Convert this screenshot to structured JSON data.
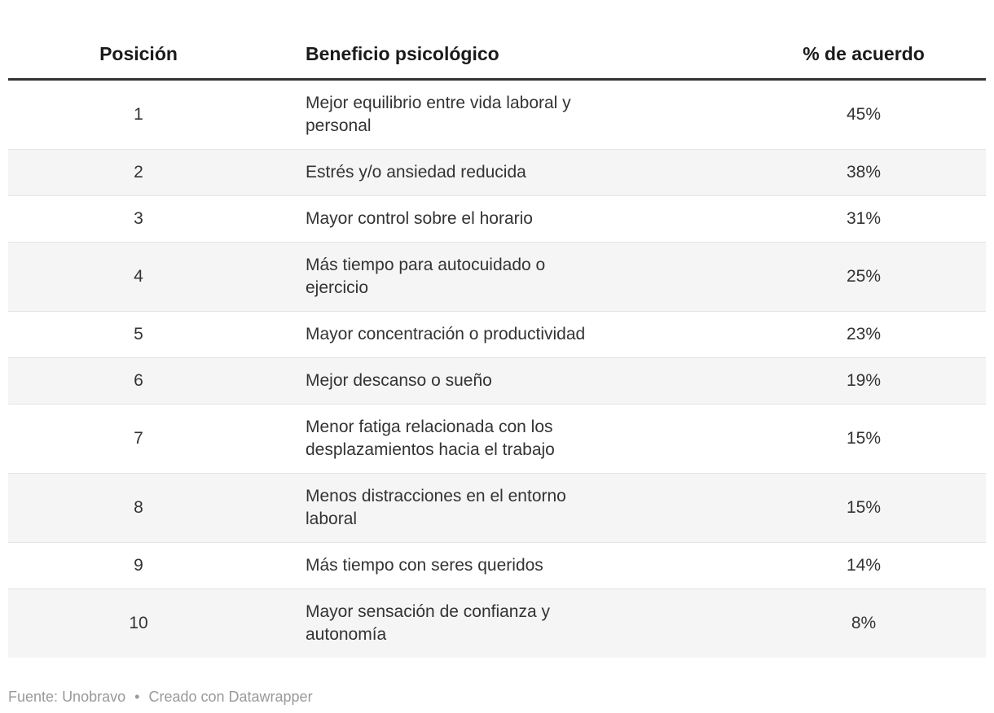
{
  "table": {
    "columns": [
      {
        "key": "posicion",
        "label": "Posición",
        "align": "center"
      },
      {
        "key": "beneficio",
        "label": "Beneficio psicológico",
        "align": "left"
      },
      {
        "key": "porcentaje",
        "label": "% de acuerdo",
        "align": "center"
      }
    ],
    "rows": [
      {
        "posicion": "1",
        "beneficio": "Mejor equilibrio entre vida laboral y\npersonal",
        "porcentaje": "45%"
      },
      {
        "posicion": "2",
        "beneficio": "Estrés y/o ansiedad reducida",
        "porcentaje": "38%"
      },
      {
        "posicion": "3",
        "beneficio": "Mayor control sobre el horario",
        "porcentaje": "31%"
      },
      {
        "posicion": "4",
        "beneficio": "Más tiempo para autocuidado o\nejercicio",
        "porcentaje": "25%"
      },
      {
        "posicion": "5",
        "beneficio": "Mayor concentración o productividad",
        "porcentaje": "23%"
      },
      {
        "posicion": "6",
        "beneficio": "Mejor descanso o sueño",
        "porcentaje": "19%"
      },
      {
        "posicion": "7",
        "beneficio": "Menor fatiga relacionada con los\ndesplazamientos hacia el trabajo",
        "porcentaje": "15%"
      },
      {
        "posicion": "8",
        "beneficio": "Menos distracciones en el entorno\nlaboral",
        "porcentaje": "15%"
      },
      {
        "posicion": "9",
        "beneficio": "Más tiempo con seres queridos",
        "porcentaje": "14%"
      },
      {
        "posicion": "10",
        "beneficio": "Mayor sensación de confianza y\nautonomía",
        "porcentaje": "8%"
      }
    ]
  },
  "footer": {
    "prefix": "Fuente:",
    "source": "Unobravo",
    "separator": "•",
    "credit": "Creado con Datawrapper"
  },
  "colors": {
    "background": "#ffffff",
    "stripe": "#f5f5f5",
    "header_rule": "#333333",
    "row_divider": "#e3e3e3",
    "body_text": "#333333",
    "header_text": "#1a1a1a",
    "footer_text": "#999999"
  },
  "chart_data": {
    "type": "table",
    "title": "",
    "columns": [
      "Posición",
      "Beneficio psicológico",
      "% de acuerdo"
    ],
    "categories": [
      "Mejor equilibrio entre vida laboral y personal",
      "Estrés y/o ansiedad reducida",
      "Mayor control sobre el horario",
      "Más tiempo para autocuidado o ejercicio",
      "Mayor concentración o productividad",
      "Mejor descanso o sueño",
      "Menor fatiga relacionada con los desplazamientos hacia el trabajo",
      "Menos distracciones en el entorno laboral",
      "Más tiempo con seres queridos",
      "Mayor sensación de confianza y autonomía"
    ],
    "positions": [
      1,
      2,
      3,
      4,
      5,
      6,
      7,
      8,
      9,
      10
    ],
    "values_percent": [
      45,
      38,
      31,
      25,
      23,
      19,
      15,
      15,
      14,
      8
    ],
    "source": "Fuente: Unobravo",
    "credit": "Creado con Datawrapper",
    "layout_hints": {
      "striped_rows": true,
      "header_rule": true,
      "grid": "horizontal-only"
    }
  }
}
